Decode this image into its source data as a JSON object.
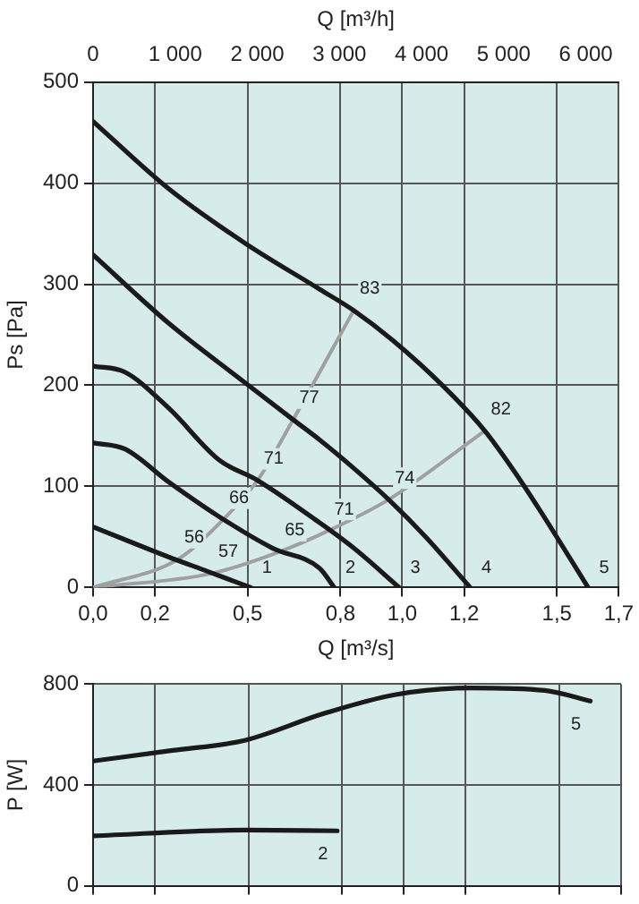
{
  "chart_data": [
    {
      "type": "line",
      "xlabel": "Q [m³/s]",
      "x2label": "Q [m³/h]",
      "ylabel": "Ps [Pa]",
      "marker": "none",
      "line_style": "solid",
      "grid": true,
      "xlim": [
        0,
        1.7
      ],
      "xticks": [
        {
          "value": 0,
          "label": "0,0"
        },
        {
          "value": 0.2,
          "label": "0,2"
        },
        {
          "value": 0.5,
          "label": "0,5"
        },
        {
          "value": 0.8,
          "label": "0,8"
        },
        {
          "value": 1.0,
          "label": "1,0"
        },
        {
          "value": 1.2,
          "label": "1,2"
        },
        {
          "value": 1.5,
          "label": "1,5"
        },
        {
          "value": 1.7,
          "label": "1,7"
        }
      ],
      "x2lim": [
        0,
        6400
      ],
      "x2ticks": [
        0,
        {
          "value": 1000,
          "label": "1 000"
        },
        {
          "value": 2000,
          "label": "2 000"
        },
        {
          "value": 3000,
          "label": "3 000"
        },
        {
          "value": 4000,
          "label": "4 000"
        },
        {
          "value": 5000,
          "label": "5 000"
        },
        {
          "value": 6000,
          "label": "6 000"
        }
      ],
      "ylim": [
        0,
        500
      ],
      "yticks": [
        0,
        100,
        200,
        300,
        400,
        500
      ],
      "series": [
        {
          "name": "5",
          "color": "#1a1a1a",
          "x": [
            0,
            0.246,
            0.494,
            0.733,
            0.843,
            0.971,
            1.133,
            1.267,
            1.362,
            1.448,
            1.601
          ],
          "values": [
            461,
            394,
            340,
            295,
            274,
            244,
            199,
            155,
            115,
            75,
            0
          ]
        },
        {
          "name": "4",
          "color": "#1a1a1a",
          "x": [
            0,
            0.246,
            0.494,
            0.647,
            0.733,
            0.843,
            0.956,
            1.076,
            1.22
          ],
          "values": [
            329,
            261,
            202,
            166,
            146,
            118,
            87,
            50,
            0
          ]
        },
        {
          "name": "3",
          "color": "#1a1a1a",
          "x": [
            0,
            0.103,
            0.246,
            0.408,
            0.532,
            0.733,
            0.843,
            0.99
          ],
          "values": [
            219,
            213,
            177,
            126,
            106,
            64,
            39,
            0
          ]
        },
        {
          "name": "2",
          "color": "#1a1a1a",
          "x": [
            0,
            0.103,
            0.246,
            0.408,
            0.58,
            0.733,
            0.78
          ],
          "values": [
            143,
            137,
            104,
            70,
            39,
            19,
            0
          ]
        },
        {
          "name": "1",
          "color": "#1a1a1a",
          "x": [
            0,
            0.246,
            0.37,
            0.51
          ],
          "values": [
            60,
            30,
            16,
            0
          ]
        },
        {
          "color": "#a0a0a0",
          "x": [
            0,
            0.275,
            0.42,
            0.532,
            0.647,
            0.843
          ],
          "values": [
            0,
            28,
            67,
            106,
            166,
            274
          ]
        },
        {
          "color": "#a0a0a0",
          "x": [
            0,
            0.385,
            0.6,
            0.76,
            0.956,
            1.267
          ],
          "values": [
            0,
            14,
            35,
            56,
            87,
            155
          ]
        }
      ],
      "annotations": [
        {
          "text": "56",
          "x": 0.275,
          "y": 28
        },
        {
          "text": "66",
          "x": 0.42,
          "y": 67
        },
        {
          "text": "71",
          "x": 0.532,
          "y": 106
        },
        {
          "text": "77",
          "x": 0.647,
          "y": 166
        },
        {
          "text": "83",
          "x": 0.843,
          "y": 274
        },
        {
          "text": "57",
          "x": 0.385,
          "y": 14
        },
        {
          "text": "65",
          "x": 0.6,
          "y": 35
        },
        {
          "text": "71",
          "x": 0.76,
          "y": 56
        },
        {
          "text": "74",
          "x": 0.956,
          "y": 87
        },
        {
          "text": "82",
          "x": 1.267,
          "y": 155
        }
      ]
    },
    {
      "type": "line",
      "ylabel": "P [W]",
      "marker": "none",
      "line_style": "solid",
      "grid": true,
      "tick_labels": "y",
      "xlim": [
        0,
        1.7
      ],
      "xticks": [
        {
          "value": 0,
          "label": null
        },
        {
          "value": 0.2,
          "label": null
        },
        {
          "value": 0.5,
          "label": null
        },
        {
          "value": 0.8,
          "label": null
        },
        {
          "value": 1.0,
          "label": null
        },
        {
          "value": 1.2,
          "label": null
        },
        {
          "value": 1.5,
          "label": null
        },
        {
          "value": 1.7,
          "label": null
        }
      ],
      "ylim": [
        0,
        800
      ],
      "yticks": [
        0,
        400,
        800
      ],
      "series": [
        {
          "name": "5",
          "color": "#1a1a1a",
          "x": [
            0,
            0.256,
            0.488,
            0.742,
            0.971,
            1.215,
            1.454,
            1.601
          ],
          "values": [
            495,
            537,
            577,
            683,
            758,
            785,
            775,
            733
          ]
        },
        {
          "name": "2",
          "color": "#1a1a1a",
          "x": [
            0,
            0.488,
            0.786
          ],
          "values": [
            198,
            221,
            218
          ]
        }
      ]
    }
  ]
}
